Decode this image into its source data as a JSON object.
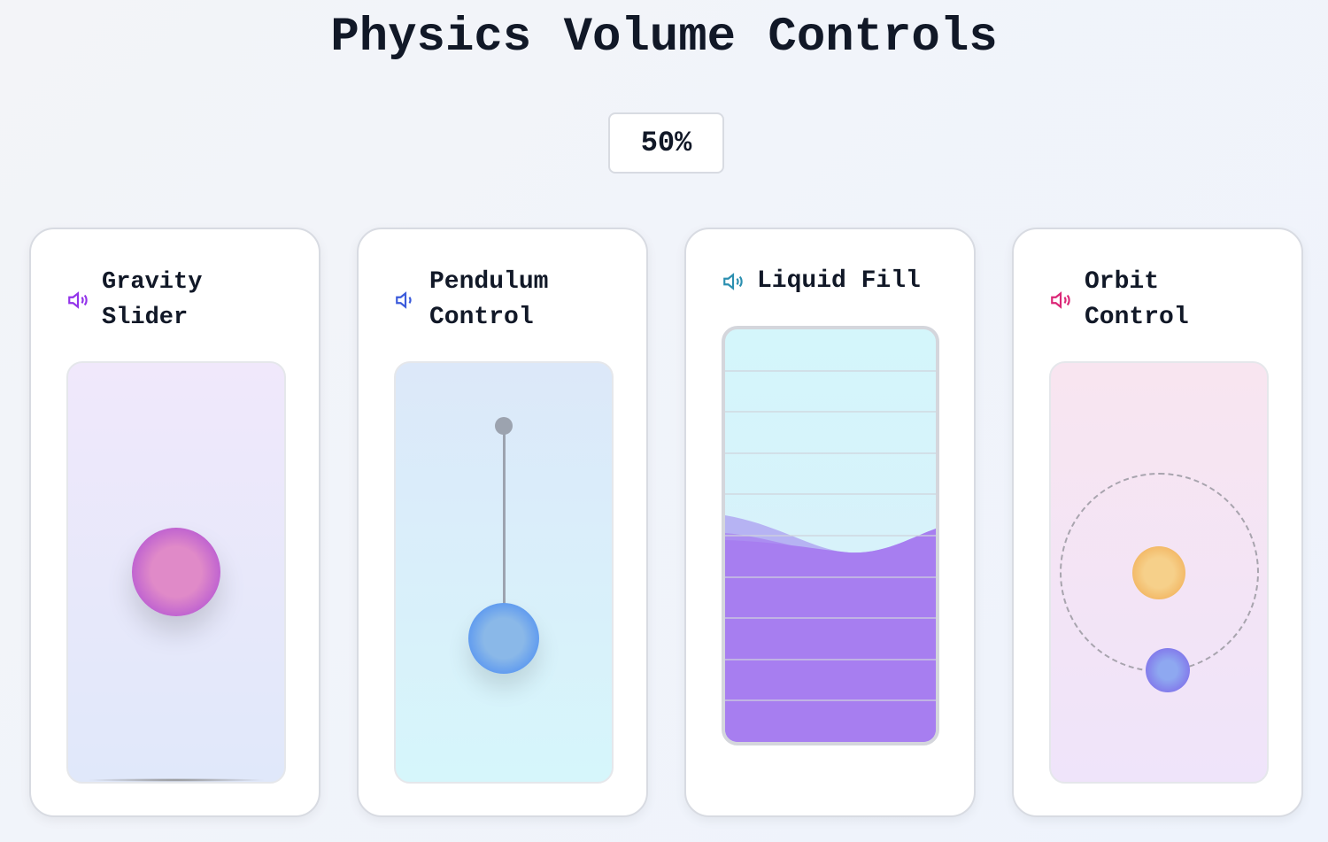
{
  "title": "Physics Volume Controls",
  "volume_percent": "50%",
  "volume_value": 50,
  "cards": [
    {
      "label_line1": "Gravity",
      "label_line2": "Slider",
      "icon": "speaker-icon",
      "color": "#9333ea"
    },
    {
      "label_line1": "Pendulum",
      "label_line2": "Control",
      "icon": "speaker-icon",
      "color": "#3b5bdb"
    },
    {
      "label_line1": "Liquid Fill",
      "icon": "speaker-icon",
      "color": "#2b8fb0"
    },
    {
      "label_line1": "Orbit",
      "label_line2": "Control",
      "icon": "speaker-icon",
      "color": "#db2777"
    }
  ]
}
